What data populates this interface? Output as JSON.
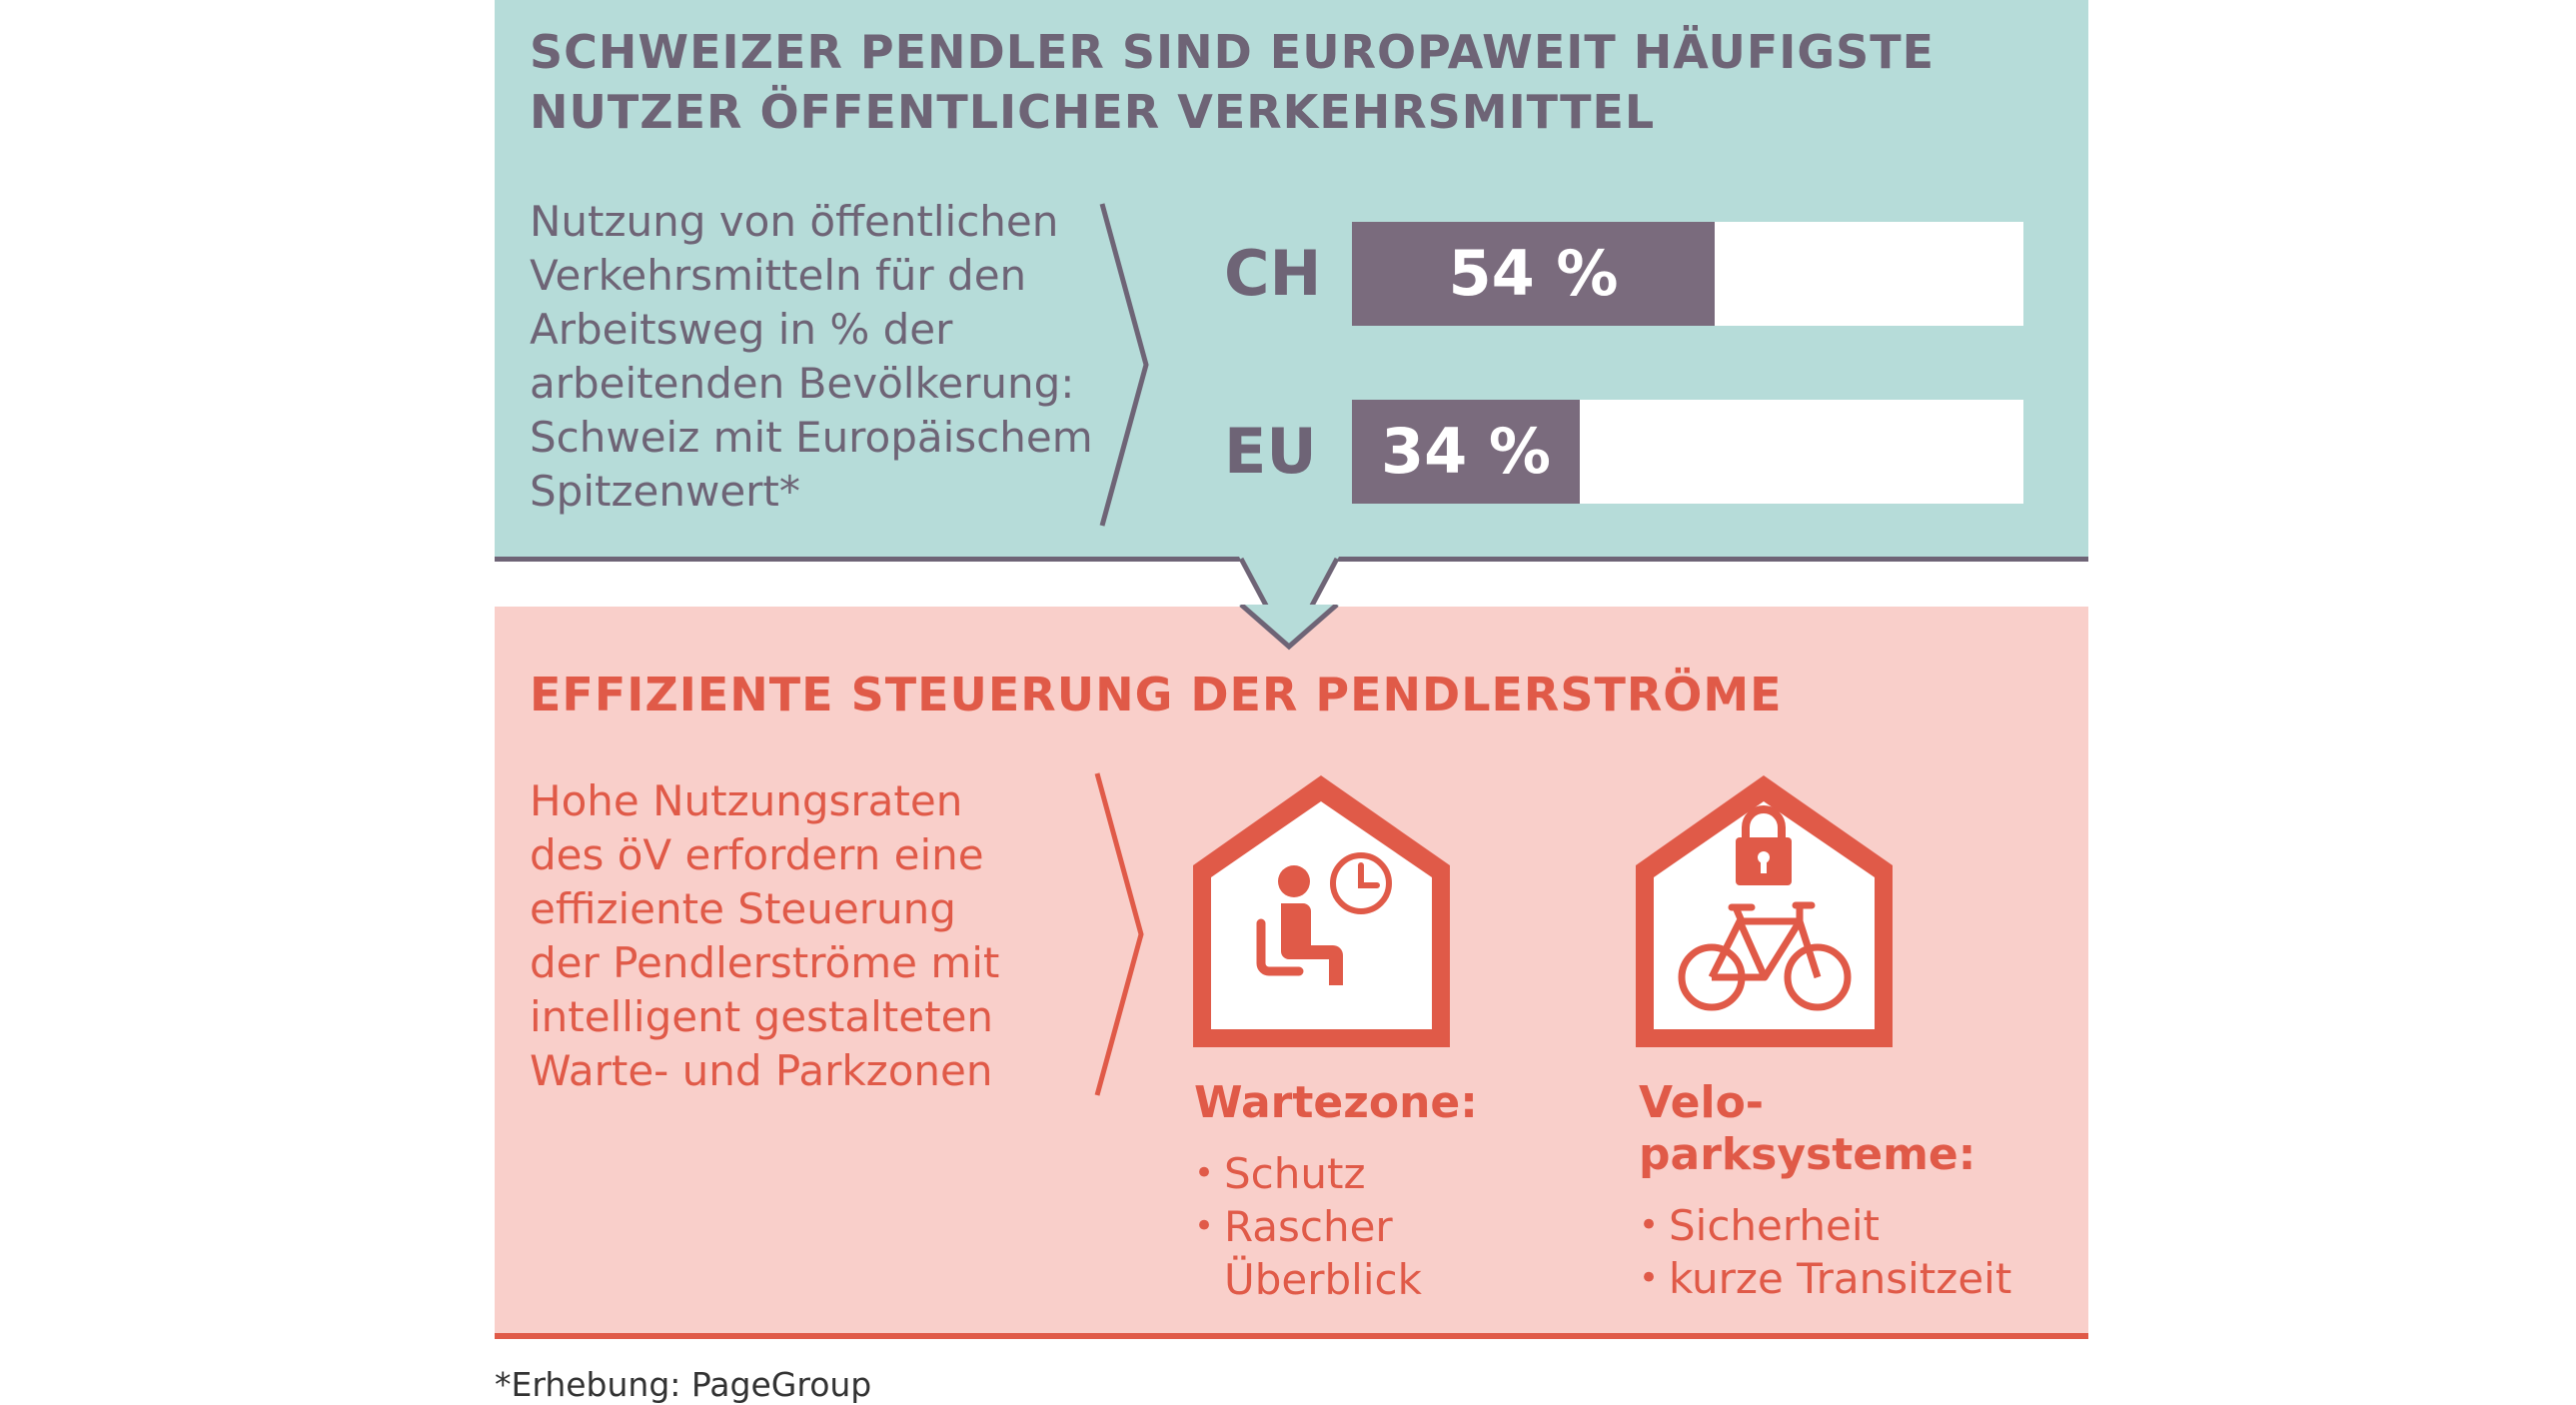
{
  "top_section": {
    "title_lines": [
      "SCHWEIZER PENDLER SIND EUROPAWEIT HÄUFIGSTE",
      "NUTZER ÖFFENTLICHER VERKEHRSMITTEL"
    ],
    "description_lines": [
      "Nutzung von öffentlichen",
      "Verkehrsmitteln für den",
      "Arbeitsweg in % der",
      "arbeitenden Bevölkerung:",
      "Schweiz mit Europäischem",
      "Spitzenwert*"
    ]
  },
  "chart_data": {
    "type": "bar",
    "orientation": "horizontal",
    "categories": [
      "CH",
      "EU"
    ],
    "values": [
      54,
      34
    ],
    "value_labels": [
      "54 %",
      "34 %"
    ],
    "unit": "%",
    "xlim": [
      0,
      100
    ],
    "colors": {
      "fill": "#7a6b7d",
      "track": "#ffffff"
    },
    "grid": false
  },
  "bottom_section": {
    "title": "EFFIZIENTE STEUERUNG DER PENDLERSTRÖME",
    "description_lines": [
      "Hohe Nutzungsraten",
      "des öV erfordern eine",
      "effiziente Steuerung",
      "der Pendlerströme mit",
      "intelligent gestalteten",
      "Warte- und Parkzonen"
    ],
    "wartezone": {
      "icon": "waiting-person-clock-icon",
      "title": "Wartezone:",
      "items": [
        "Schutz",
        "Rascher",
        "Überblick"
      ]
    },
    "velo": {
      "icon": "bicycle-lock-icon",
      "title_lines": [
        "Velo-",
        "parksysteme:"
      ],
      "items": [
        "Sicherheit",
        "kurze Transitzeit"
      ]
    }
  },
  "footnote": "*Erhebung: PageGroup",
  "colors": {
    "teal_panel": "#b6dcd9",
    "pink_panel": "#f9cfca",
    "purple_text": "#6e6476",
    "red_accent": "#e05a48"
  }
}
